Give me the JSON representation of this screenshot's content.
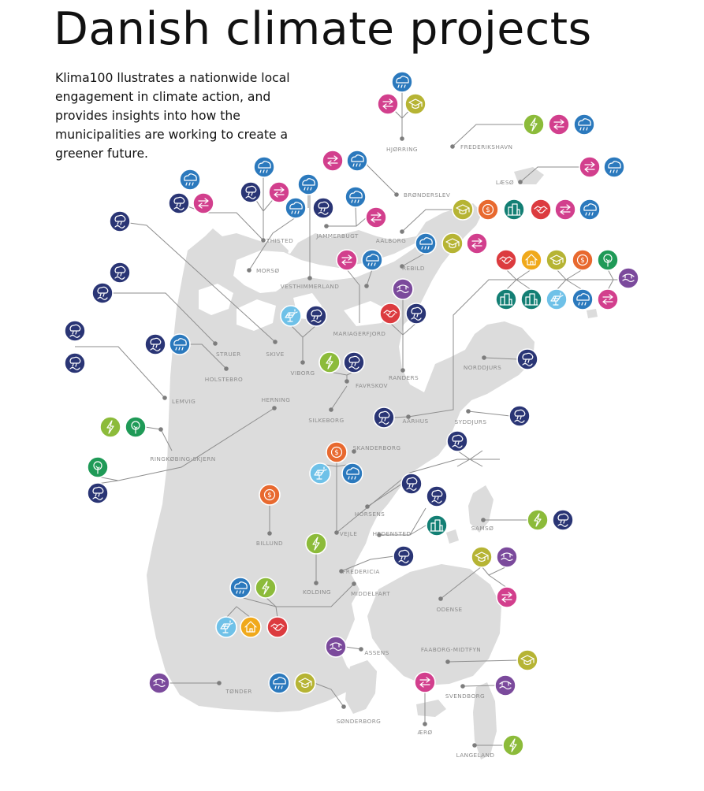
{
  "title": "Danish climate projects",
  "intro": "Klima100 llustrates a nationwide local engagement in climate action, and provides insights into how the municipalities are working to create a greener future.",
  "colors": {
    "land": "#dcdcdc",
    "leader": "#8e8e8e",
    "transport": "#d23f8d",
    "weather": "#2b79bd",
    "water": "#2a3575",
    "education": "#b6b434",
    "energy": "#8cbb3a",
    "finance": "#e8692f",
    "partnership": "#dc3b3f",
    "housing": "#f0a91b",
    "buildings": "#137f74",
    "solar": "#6fc1e8",
    "nature": "#1f9a57",
    "biodiversity": "#7b4a9c"
  },
  "icon_names": {
    "transport": "transport-arrows-icon",
    "weather": "cloud-rain-icon",
    "water": "cloudburst-icon",
    "education": "graduation-cap-icon",
    "energy": "lightning-bolt-icon",
    "finance": "dollar-coin-icon",
    "partnership": "handshake-icon",
    "housing": "house-icon",
    "buildings": "city-buildings-icon",
    "solar": "solar-panel-icon",
    "nature": "tree-icon",
    "biodiversity": "nature-biodiversity-icon"
  },
  "municipalities": [
    {
      "name": "HJØRRING",
      "projects": [
        "weather",
        "transport",
        "education"
      ]
    },
    {
      "name": "FREDERIKSHAVN",
      "projects": [
        "energy",
        "transport",
        "weather"
      ]
    },
    {
      "name": "LÆSØ",
      "projects": [
        "transport",
        "weather"
      ]
    },
    {
      "name": "BRØNDERSLEV",
      "projects": [
        "transport",
        "weather"
      ]
    },
    {
      "name": "JAMMERBUGT",
      "projects": [
        "weather",
        "transport"
      ]
    },
    {
      "name": "AALBORG",
      "projects": [
        "education",
        "finance",
        "buildings",
        "partnership",
        "transport",
        "weather"
      ]
    },
    {
      "name": "THISTED",
      "projects": [
        "weather",
        "water",
        "transport",
        "weather",
        "water",
        "transport"
      ]
    },
    {
      "name": "MORSØ",
      "projects": [
        "weather",
        "transport",
        "water"
      ]
    },
    {
      "name": "VESTHIMMERLAND",
      "projects": [
        "weather"
      ]
    },
    {
      "name": "REBILD",
      "projects": [
        "weather",
        "education",
        "transport"
      ]
    },
    {
      "name": "MARIAGERFJORD",
      "projects": [
        "transport",
        "weather"
      ]
    },
    {
      "name": "SKIVE",
      "projects": [
        "water"
      ]
    },
    {
      "name": "STRUER",
      "projects": [
        "water",
        "water"
      ]
    },
    {
      "name": "HOLSTEBRO",
      "projects": [
        "water",
        "weather"
      ]
    },
    {
      "name": "VIBORG",
      "projects": [
        "solar",
        "water"
      ]
    },
    {
      "name": "LEMVIG",
      "projects": [
        "water",
        "water"
      ]
    },
    {
      "name": "FAVRSKOV",
      "projects": [
        "energy",
        "water"
      ]
    },
    {
      "name": "RANDERS",
      "projects": [
        "partnership",
        "biodiversity",
        "water"
      ]
    },
    {
      "name": "NORDDJURS",
      "projects": [
        "water"
      ]
    },
    {
      "name": "SYDDJURS",
      "projects": [
        "water"
      ]
    },
    {
      "name": "SILKEBORG",
      "projects": [
        "energy",
        "water"
      ]
    },
    {
      "name": "HERNING",
      "projects": [
        "nature",
        "water"
      ]
    },
    {
      "name": "RINGKØBING-SKJERN",
      "projects": [
        "energy",
        "nature"
      ]
    },
    {
      "name": "AARHUS",
      "projects": [
        "water",
        "partnership",
        "housing",
        "education",
        "finance",
        "nature",
        "buildings",
        "buildings",
        "solar",
        "weather",
        "transport",
        "biodiversity"
      ]
    },
    {
      "name": "SKANDERBORG",
      "projects": [
        "finance",
        "solar",
        "weather"
      ]
    },
    {
      "name": "HORSENS",
      "projects": [
        "water"
      ]
    },
    {
      "name": "HEDENSTED",
      "projects": [
        "water",
        "buildings"
      ]
    },
    {
      "name": "SAMSØ",
      "projects": [
        "energy",
        "water"
      ]
    },
    {
      "name": "BILLUND",
      "projects": [
        "finance"
      ]
    },
    {
      "name": "VEJLE",
      "projects": [
        "water"
      ]
    },
    {
      "name": "KOLDING",
      "projects": [
        "energy"
      ]
    },
    {
      "name": "FREDERICIA",
      "projects": [
        "water"
      ]
    },
    {
      "name": "MIDDELFART",
      "projects": [
        "weather",
        "energy",
        "solar",
        "housing",
        "partnership"
      ]
    },
    {
      "name": "ODENSE",
      "projects": [
        "education",
        "biodiversity",
        "transport"
      ]
    },
    {
      "name": "ASSENS",
      "projects": [
        "biodiversity"
      ]
    },
    {
      "name": "FAABORG-MIDTFYN",
      "projects": [
        "education"
      ]
    },
    {
      "name": "SVENDBORG",
      "projects": [
        "biodiversity"
      ]
    },
    {
      "name": "TØNDER",
      "projects": [
        "biodiversity"
      ]
    },
    {
      "name": "SØNDERBORG",
      "projects": [
        "weather",
        "education"
      ]
    },
    {
      "name": "ÆRØ",
      "projects": [
        "transport"
      ]
    },
    {
      "name": "LANGELAND",
      "projects": [
        "energy"
      ]
    }
  ]
}
